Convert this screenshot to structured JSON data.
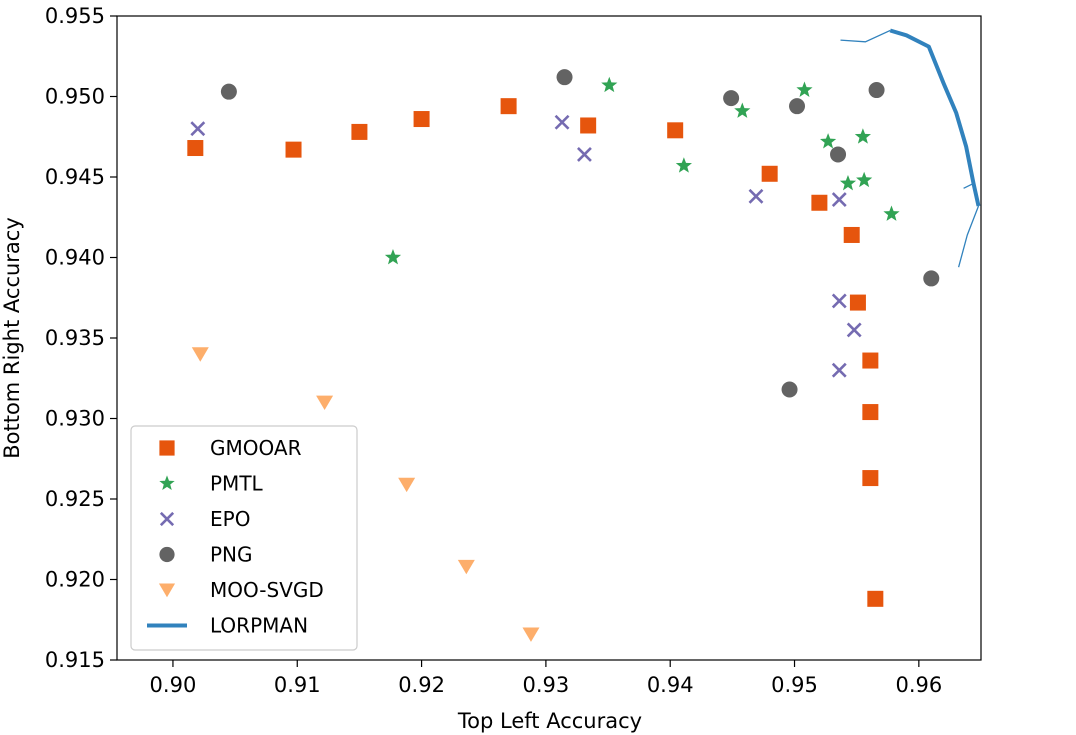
{
  "chart_data": {
    "type": "scatter",
    "xlabel": "Top Left Accuracy",
    "ylabel": "Bottom Right Accuracy",
    "xlim": [
      0.8955,
      0.965
    ],
    "ylim": [
      0.915,
      0.955
    ],
    "xticks": [
      "0.90",
      "0.91",
      "0.92",
      "0.93",
      "0.94",
      "0.95",
      "0.96"
    ],
    "yticks": [
      "0.915",
      "0.920",
      "0.925",
      "0.930",
      "0.935",
      "0.940",
      "0.945",
      "0.950",
      "0.955"
    ],
    "grid": false,
    "legend_position": "lower-left",
    "series": [
      {
        "name": "GMOOAR",
        "marker": "square",
        "color": "#e6550d",
        "x": [
          0.9018,
          0.9097,
          0.915,
          0.92,
          0.927,
          0.9334,
          0.9404,
          0.948,
          0.952,
          0.9546,
          0.9551,
          0.9561,
          0.9561,
          0.9561,
          0.9565
        ],
        "y": [
          0.9468,
          0.9467,
          0.9478,
          0.9486,
          0.9494,
          0.9482,
          0.9479,
          0.9452,
          0.9434,
          0.9414,
          0.9372,
          0.9336,
          0.9304,
          0.9263,
          0.9188
        ]
      },
      {
        "name": "PMTL",
        "marker": "star",
        "color": "#31a354",
        "x": [
          0.9177,
          0.9351,
          0.9411,
          0.9458,
          0.9508,
          0.9527,
          0.9543,
          0.9555,
          0.9556,
          0.9578
        ],
        "y": [
          0.94,
          0.9507,
          0.9457,
          0.9491,
          0.9504,
          0.9472,
          0.9446,
          0.9475,
          0.9448,
          0.9427
        ]
      },
      {
        "name": "EPO",
        "marker": "x",
        "color": "#756bb1",
        "x": [
          0.902,
          0.9313,
          0.9331,
          0.9469,
          0.9536,
          0.9536,
          0.9548,
          0.9536
        ],
        "y": [
          0.948,
          0.9484,
          0.9464,
          0.9438,
          0.9436,
          0.9373,
          0.9355,
          0.933
        ]
      },
      {
        "name": "PNG",
        "marker": "circle",
        "color": "#636363",
        "x": [
          0.9045,
          0.9315,
          0.9449,
          0.9502,
          0.9566,
          0.9535,
          0.961,
          0.9496
        ],
        "y": [
          0.9503,
          0.9512,
          0.9499,
          0.9494,
          0.9504,
          0.9464,
          0.9387,
          0.9318
        ]
      },
      {
        "name": "MOO-SVGD",
        "marker": "triangle-down",
        "color": "#fdae6b",
        "x": [
          0.9022,
          0.9122,
          0.9188,
          0.9236,
          0.9288
        ],
        "y": [
          0.934,
          0.931,
          0.9259,
          0.9208,
          0.9166
        ]
      },
      {
        "name": "LORPMAN",
        "marker": "line",
        "color": "#3182bd",
        "x": [
          0.9577,
          0.959,
          0.9608,
          0.962,
          0.963,
          0.9638,
          0.9644,
          0.9648
        ],
        "y": [
          0.9541,
          0.9538,
          0.9531,
          0.9508,
          0.949,
          0.9469,
          0.9446,
          0.9432
        ],
        "whiskers": [
          {
            "x": [
              0.9577,
              0.9557,
              0.9537
            ],
            "y": [
              0.9541,
              0.9534,
              0.9535
            ]
          },
          {
            "x": [
              0.9648,
              0.9639,
              0.9632
            ],
            "y": [
              0.9432,
              0.9414,
              0.9394
            ]
          },
          {
            "x": [
              0.9644,
              0.9636
            ],
            "y": [
              0.9446,
              0.9443
            ]
          }
        ]
      }
    ]
  }
}
